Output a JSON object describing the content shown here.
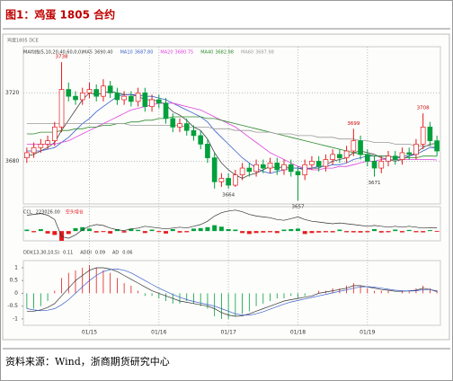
{
  "header": {
    "title": "图1：鸡蛋 1805 合约",
    "source": "资料来源：Wind，浙商期货研究中心"
  },
  "chart_data": [
    {
      "type": "candlestick",
      "subtitle": "鸡蛋1805 DCE",
      "legend_prefix": "MA均线(5,10,20,40,60,0,0)",
      "categories": [
        "",
        "",
        "",
        "",
        "",
        "",
        "",
        "",
        "",
        "01/15",
        "",
        "",
        "",
        "",
        "",
        "",
        "",
        "",
        "",
        "01/16",
        "",
        "",
        "",
        "",
        "",
        "",
        "",
        "",
        "",
        "01/17",
        "",
        "",
        "",
        "",
        "",
        "",
        "",
        "",
        "",
        "01/18",
        "",
        "",
        "",
        "",
        "",
        "",
        "",
        "",
        "",
        "01/19",
        "",
        "",
        "",
        "",
        "",
        "",
        "",
        "",
        "",
        ""
      ],
      "open": [
        3682,
        3685,
        3688,
        3690,
        3692,
        3700,
        3722,
        3718,
        3716,
        3720,
        3722,
        3718,
        3724,
        3720,
        3716,
        3718,
        3715,
        3720,
        3712,
        3716,
        3714,
        3705,
        3700,
        3702,
        3698,
        3695,
        3690,
        3682,
        3668,
        3670,
        3666,
        3672,
        3676,
        3674,
        3678,
        3676,
        3679,
        3675,
        3678,
        3674,
        3672,
        3678,
        3680,
        3677,
        3681,
        3684,
        3682,
        3686,
        3692,
        3684,
        3680,
        3676,
        3680,
        3683,
        3681,
        3685,
        3684,
        3690,
        3700,
        3692
      ],
      "close": [
        3685,
        3688,
        3690,
        3692,
        3700,
        3722,
        3718,
        3716,
        3720,
        3722,
        3718,
        3724,
        3720,
        3716,
        3718,
        3715,
        3720,
        3712,
        3716,
        3714,
        3705,
        3700,
        3702,
        3698,
        3695,
        3690,
        3682,
        3668,
        3670,
        3666,
        3672,
        3676,
        3674,
        3678,
        3676,
        3679,
        3675,
        3678,
        3674,
        3672,
        3678,
        3680,
        3677,
        3681,
        3684,
        3682,
        3686,
        3692,
        3684,
        3680,
        3676,
        3680,
        3683,
        3681,
        3685,
        3684,
        3690,
        3700,
        3692,
        3686
      ],
      "high": [
        3688,
        3691,
        3693,
        3695,
        3703,
        3738,
        3726,
        3721,
        3723,
        3726,
        3725,
        3728,
        3727,
        3723,
        3721,
        3721,
        3723,
        3723,
        3719,
        3719,
        3717,
        3708,
        3705,
        3705,
        3701,
        3698,
        3693,
        3685,
        3673,
        3673,
        3675,
        3679,
        3679,
        3681,
        3681,
        3682,
        3682,
        3681,
        3681,
        3677,
        3681,
        3683,
        3683,
        3684,
        3687,
        3687,
        3689,
        3699,
        3695,
        3687,
        3683,
        3683,
        3686,
        3686,
        3688,
        3688,
        3693,
        3708,
        3703,
        3695
      ],
      "low": [
        3679,
        3682,
        3685,
        3687,
        3689,
        3697,
        3715,
        3713,
        3713,
        3717,
        3715,
        3715,
        3717,
        3713,
        3713,
        3712,
        3712,
        3709,
        3709,
        3711,
        3702,
        3697,
        3697,
        3695,
        3692,
        3687,
        3679,
        3664,
        3665,
        3664,
        3665,
        3669,
        3671,
        3671,
        3673,
        3673,
        3672,
        3672,
        3671,
        3657,
        3669,
        3675,
        3674,
        3674,
        3678,
        3679,
        3679,
        3683,
        3681,
        3677,
        3671,
        3673,
        3677,
        3678,
        3678,
        3681,
        3681,
        3687,
        3689,
        3683
      ],
      "up_color": "#e41a1c",
      "down_color": "#00a03c",
      "series": [
        {
          "name": "MA5",
          "last_label": "3690.40",
          "color": "#444444",
          "values": [
            3683,
            3684,
            3686,
            3688,
            3691,
            3698,
            3704,
            3710,
            3716,
            3720,
            3719,
            3720,
            3721,
            3720,
            3719,
            3719,
            3718,
            3716,
            3716,
            3715,
            3713,
            3709,
            3707,
            3704,
            3700,
            3698,
            3693,
            3685,
            3679,
            3675,
            3672,
            3670,
            3672,
            3673,
            3675,
            3677,
            3676,
            3677,
            3676,
            3676,
            3675,
            3676,
            3676,
            3678,
            3680,
            3681,
            3682,
            3685,
            3686,
            3685,
            3684,
            3682,
            3681,
            3680,
            3681,
            3683,
            3685,
            3688,
            3690,
            3690.4
          ]
        },
        {
          "name": "MA10",
          "last_label": "3687.80",
          "color": "#3a5fcd",
          "values": [
            3686,
            3686,
            3686,
            3687,
            3688,
            3691,
            3694,
            3698,
            3702,
            3705,
            3709,
            3712,
            3715,
            3718,
            3719,
            3719,
            3719,
            3718,
            3718,
            3717,
            3716,
            3714,
            3712,
            3710,
            3708,
            3706,
            3703,
            3698,
            3694,
            3690,
            3686,
            3682,
            3679,
            3676,
            3674,
            3673,
            3674,
            3675,
            3676,
            3676,
            3676,
            3676,
            3677,
            3677,
            3678,
            3678,
            3679,
            3681,
            3682,
            3683,
            3683,
            3683,
            3683,
            3682,
            3683,
            3683,
            3684,
            3686,
            3688,
            3687.8
          ]
        },
        {
          "name": "MA20",
          "last_label": "3680.75",
          "color": "#e040e0",
          "values": [
            3690,
            3690,
            3690,
            3690,
            3690,
            3691,
            3692,
            3694,
            3696,
            3698,
            3700,
            3702,
            3704,
            3706,
            3708,
            3710,
            3711,
            3712,
            3713,
            3714,
            3714,
            3714,
            3713,
            3712,
            3711,
            3710,
            3708,
            3706,
            3704,
            3702,
            3700,
            3697,
            3694,
            3691,
            3688,
            3685,
            3683,
            3681,
            3679,
            3677,
            3676,
            3675,
            3675,
            3676,
            3676,
            3677,
            3677,
            3678,
            3679,
            3680,
            3680,
            3681,
            3681,
            3681,
            3681,
            3681,
            3681,
            3681,
            3681,
            3680.75
          ]
        },
        {
          "name": "MA40",
          "last_label": "3682.98",
          "color": "#2e8b2e",
          "values": [
            3696,
            3696,
            3697,
            3697,
            3697,
            3698,
            3698,
            3699,
            3699,
            3700,
            3700,
            3701,
            3701,
            3702,
            3702,
            3703,
            3703,
            3704,
            3704,
            3705,
            3705,
            3706,
            3706,
            3706,
            3706,
            3706,
            3705,
            3705,
            3704,
            3703,
            3702,
            3701,
            3700,
            3699,
            3698,
            3697,
            3696,
            3695,
            3694,
            3693,
            3692,
            3691,
            3690,
            3689,
            3688,
            3687,
            3686,
            3685,
            3684,
            3684,
            3683,
            3683,
            3683,
            3682,
            3682,
            3682,
            3682,
            3683,
            3683,
            3682.98
          ]
        },
        {
          "name": "MA60",
          "last_label": "3687.98",
          "color": "#9a9a9a",
          "values": [
            3702,
            3702,
            3702,
            3702,
            3702,
            3702,
            3702,
            3702,
            3702,
            3702,
            3702,
            3702,
            3702,
            3702,
            3702,
            3701,
            3701,
            3701,
            3701,
            3701,
            3701,
            3701,
            3701,
            3700,
            3700,
            3700,
            3700,
            3699,
            3699,
            3699,
            3698,
            3698,
            3698,
            3697,
            3697,
            3697,
            3696,
            3696,
            3696,
            3695,
            3695,
            3695,
            3694,
            3694,
            3694,
            3693,
            3693,
            3693,
            3692,
            3692,
            3691,
            3691,
            3691,
            3690,
            3690,
            3690,
            3689,
            3689,
            3689,
            3687.98
          ]
        }
      ],
      "annotations": [
        {
          "value": 3738,
          "index": 5,
          "side": "high"
        },
        {
          "value": 3699,
          "index": 47,
          "side": "high"
        },
        {
          "value": 3708,
          "index": 57,
          "side": "high"
        },
        {
          "value": 3664,
          "index": 29,
          "side": "low"
        },
        {
          "value": 3657,
          "index": 39,
          "side": "low"
        },
        {
          "value": 3671,
          "index": 50,
          "side": "low"
        }
      ],
      "ylim": [
        3655,
        3747
      ],
      "yticks": [
        3680,
        3720
      ],
      "grid": true
    },
    {
      "type": "line_bar",
      "legend_label": "空头增仓",
      "series": [
        {
          "name": "CCL",
          "last_label": "223026.00",
          "color": "#333333",
          "values": [
            224500,
            224600,
            224700,
            224500,
            224000,
            222000,
            221800,
            222200,
            222800,
            223200,
            223400,
            223300,
            223000,
            222800,
            222700,
            222900,
            223000,
            223200,
            223100,
            223000,
            222900,
            223000,
            223100,
            223000,
            223200,
            223400,
            223800,
            224400,
            224800,
            225000,
            225100,
            224900,
            224600,
            224400,
            224300,
            224200,
            224000,
            223900,
            224100,
            224300,
            224000,
            223800,
            223700,
            223600,
            223500,
            223600,
            223500,
            223400,
            223300,
            223200,
            223300,
            223200,
            223100,
            223200,
            223100,
            223200,
            223100,
            223000,
            223050,
            223026
          ]
        }
      ],
      "bars": [
        150,
        -120,
        200,
        -250,
        -400,
        -1000,
        -300,
        300,
        400,
        250,
        -150,
        -100,
        -250,
        200,
        -150,
        250,
        120,
        -200,
        150,
        -100,
        -250,
        200,
        -150,
        -120,
        250,
        300,
        400,
        600,
        450,
        200,
        150,
        -200,
        -300,
        -200,
        -150,
        -120,
        -200,
        150,
        200,
        250,
        -300,
        -200,
        -150,
        -120,
        -130,
        150,
        -120,
        -130,
        -150,
        -120,
        200,
        -150,
        -120,
        150,
        -130,
        120,
        -120,
        -130,
        100,
        -80
      ],
      "ylim": [
        221500,
        225500
      ],
      "y2lim": [
        -1000,
        2500
      ]
    },
    {
      "type": "bar_line",
      "series": [
        {
          "name": "DDI(13,30,10,5)",
          "last_label": "0.11",
          "kind": "bar",
          "values": [
            -0.6,
            -0.6,
            -0.5,
            -0.3,
            0.1,
            0.6,
            0.8,
            0.9,
            1.0,
            1.1,
            1.0,
            0.9,
            0.8,
            0.6,
            0.4,
            0.3,
            0.1,
            -0.1,
            -0.1,
            -0.2,
            -0.3,
            -0.4,
            -0.4,
            -0.3,
            -0.4,
            -0.5,
            -0.6,
            -0.9,
            -1.0,
            -1.0,
            -0.9,
            -0.8,
            -0.7,
            -0.5,
            -0.4,
            -0.3,
            -0.2,
            -0.2,
            -0.1,
            -0.2,
            -0.1,
            0.0,
            0.1,
            0.1,
            0.2,
            0.2,
            0.3,
            0.4,
            0.3,
            0.2,
            0.1,
            0.1,
            0.1,
            0.0,
            0.1,
            0.1,
            0.2,
            0.3,
            0.2,
            0.11
          ]
        },
        {
          "name": "ADDI",
          "last_label": "0.09",
          "kind": "line",
          "color": "#333333",
          "values": [
            -0.7,
            -0.7,
            -0.65,
            -0.55,
            -0.4,
            -0.1,
            0.2,
            0.5,
            0.7,
            0.9,
            1.0,
            1.0,
            0.95,
            0.85,
            0.7,
            0.55,
            0.4,
            0.25,
            0.1,
            0.0,
            -0.1,
            -0.2,
            -0.3,
            -0.35,
            -0.4,
            -0.45,
            -0.5,
            -0.6,
            -0.75,
            -0.85,
            -0.9,
            -0.88,
            -0.8,
            -0.7,
            -0.6,
            -0.5,
            -0.4,
            -0.3,
            -0.25,
            -0.2,
            -0.15,
            -0.1,
            0.0,
            0.05,
            0.1,
            0.15,
            0.2,
            0.3,
            0.3,
            0.25,
            0.2,
            0.15,
            0.12,
            0.08,
            0.08,
            0.1,
            0.12,
            0.2,
            0.15,
            0.09
          ]
        },
        {
          "name": "AD",
          "last_label": "0.06",
          "kind": "line",
          "color": "#3a5fcd",
          "values": [
            -0.6,
            -0.65,
            -0.68,
            -0.66,
            -0.6,
            -0.45,
            -0.25,
            0.0,
            0.25,
            0.5,
            0.7,
            0.85,
            0.93,
            0.95,
            0.9,
            0.8,
            0.65,
            0.5,
            0.35,
            0.2,
            0.08,
            -0.05,
            -0.15,
            -0.25,
            -0.32,
            -0.38,
            -0.44,
            -0.5,
            -0.6,
            -0.7,
            -0.8,
            -0.85,
            -0.85,
            -0.8,
            -0.72,
            -0.62,
            -0.52,
            -0.42,
            -0.34,
            -0.28,
            -0.22,
            -0.16,
            -0.1,
            -0.04,
            0.02,
            0.08,
            0.13,
            0.2,
            0.25,
            0.26,
            0.24,
            0.2,
            0.16,
            0.12,
            0.1,
            0.09,
            0.1,
            0.14,
            0.15,
            0.06
          ]
        }
      ],
      "ylim": [
        -1.25,
        1.28
      ],
      "yticks": [
        1,
        0.5,
        0,
        -0.5,
        -1
      ]
    }
  ]
}
